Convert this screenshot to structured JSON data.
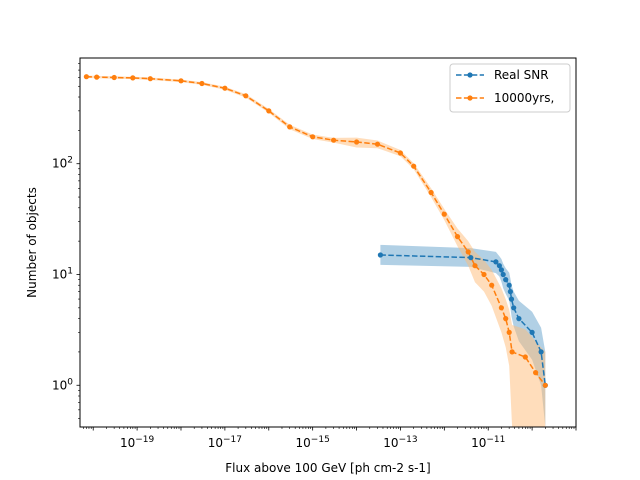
{
  "chart_data": {
    "type": "line",
    "title": "",
    "xlabel": "Flux above 100 GeV [ph cm-2 s-1]",
    "ylabel": "Number of objects",
    "xscale": "log",
    "yscale": "log",
    "xlim": [
      5e-21,
      1e-09
    ],
    "ylim": [
      0.42,
      900
    ],
    "x_ticks": [
      {
        "value": 1e-19,
        "label": "10",
        "exp": "−19"
      },
      {
        "value": 1e-17,
        "label": "10",
        "exp": "−17"
      },
      {
        "value": 1e-15,
        "label": "10",
        "exp": "−15"
      },
      {
        "value": 1e-13,
        "label": "10",
        "exp": "−13"
      },
      {
        "value": 1e-11,
        "label": "10",
        "exp": "−11"
      }
    ],
    "y_ticks": [
      {
        "value": 1,
        "label": "10",
        "exp": "0"
      },
      {
        "value": 10,
        "label": "10",
        "exp": "1"
      },
      {
        "value": 100,
        "label": "10",
        "exp": "2"
      }
    ],
    "grid": false,
    "legend": "top-right",
    "series": [
      {
        "name": "Real SNR",
        "color": "#1f77b4",
        "band_color": "#1f77b4",
        "points": [
          {
            "x": 3.5e-14,
            "y": 15,
            "lo": 12.2,
            "hi": 18.5
          },
          {
            "x": 4e-12,
            "y": 14.2,
            "lo": 11.7,
            "hi": 17.3
          },
          {
            "x": 1.5e-11,
            "y": 13,
            "lo": 10.3,
            "hi": 16
          },
          {
            "x": 1.8e-11,
            "y": 12,
            "lo": 9.6,
            "hi": 14.6
          },
          {
            "x": 2e-11,
            "y": 11,
            "lo": 8.6,
            "hi": 13.8
          },
          {
            "x": 2.2e-11,
            "y": 10,
            "lo": 7.5,
            "hi": 12.5
          },
          {
            "x": 2.5e-11,
            "y": 9,
            "lo": 6.7,
            "hi": 11.4
          },
          {
            "x": 3e-11,
            "y": 8,
            "lo": 5.8,
            "hi": 10.4
          },
          {
            "x": 3.2e-11,
            "y": 7,
            "lo": 5.0,
            "hi": 9.2
          },
          {
            "x": 3.4e-11,
            "y": 6,
            "lo": 4.2,
            "hi": 8.0
          },
          {
            "x": 3.8e-11,
            "y": 5,
            "lo": 3.4,
            "hi": 7.0
          },
          {
            "x": 5e-11,
            "y": 4,
            "lo": 2.5,
            "hi": 5.8
          },
          {
            "x": 1e-10,
            "y": 3,
            "lo": 1.7,
            "hi": 4.6
          },
          {
            "x": 1.6e-10,
            "y": 2,
            "lo": 1.0,
            "hi": 3.3
          },
          {
            "x": 2e-10,
            "y": 1,
            "lo": 0.42,
            "hi": 2.0
          }
        ]
      },
      {
        "name": "10000yrs,",
        "color": "#ff7f0e",
        "band_color": "#ffbb78",
        "points": [
          {
            "x": 7e-21,
            "y": 610,
            "lo": 595,
            "hi": 625
          },
          {
            "x": 1.2e-20,
            "y": 605,
            "lo": 590,
            "hi": 620
          },
          {
            "x": 3e-20,
            "y": 600,
            "lo": 585,
            "hi": 615
          },
          {
            "x": 8e-20,
            "y": 595,
            "lo": 580,
            "hi": 610
          },
          {
            "x": 2e-19,
            "y": 585,
            "lo": 570,
            "hi": 600
          },
          {
            "x": 1e-18,
            "y": 560,
            "lo": 545,
            "hi": 575
          },
          {
            "x": 3e-18,
            "y": 530,
            "lo": 515,
            "hi": 545
          },
          {
            "x": 1e-17,
            "y": 480,
            "lo": 465,
            "hi": 495
          },
          {
            "x": 3e-17,
            "y": 410,
            "lo": 395,
            "hi": 425
          },
          {
            "x": 1e-16,
            "y": 300,
            "lo": 288,
            "hi": 312
          },
          {
            "x": 3e-16,
            "y": 215,
            "lo": 205,
            "hi": 225
          },
          {
            "x": 1e-15,
            "y": 175,
            "lo": 167,
            "hi": 183
          },
          {
            "x": 3e-15,
            "y": 163,
            "lo": 155,
            "hi": 171
          },
          {
            "x": 1e-14,
            "y": 157,
            "lo": 140,
            "hi": 172
          },
          {
            "x": 3e-14,
            "y": 150,
            "lo": 138,
            "hi": 162
          },
          {
            "x": 1e-13,
            "y": 125,
            "lo": 117,
            "hi": 133
          },
          {
            "x": 2e-13,
            "y": 95,
            "lo": 89,
            "hi": 101
          },
          {
            "x": 5e-13,
            "y": 55,
            "lo": 50,
            "hi": 60
          },
          {
            "x": 1e-12,
            "y": 35,
            "lo": 31,
            "hi": 39
          },
          {
            "x": 2e-12,
            "y": 22,
            "lo": 18,
            "hi": 26
          },
          {
            "x": 3.5e-12,
            "y": 16,
            "lo": 12,
            "hi": 20
          },
          {
            "x": 5e-12,
            "y": 12,
            "lo": 8.5,
            "hi": 16
          },
          {
            "x": 8e-12,
            "y": 10,
            "lo": 7,
            "hi": 13.5
          },
          {
            "x": 1.2e-11,
            "y": 8,
            "lo": 5.2,
            "hi": 11
          },
          {
            "x": 2e-11,
            "y": 5,
            "lo": 3,
            "hi": 7.5
          },
          {
            "x": 2.5e-11,
            "y": 4,
            "lo": 2.2,
            "hi": 6
          },
          {
            "x": 3e-11,
            "y": 3,
            "lo": 1.5,
            "hi": 4.8
          },
          {
            "x": 3.5e-11,
            "y": 2,
            "lo": 0.42,
            "hi": 3.5
          },
          {
            "x": 7e-11,
            "y": 1.8,
            "lo": 0.42,
            "hi": 3.2
          },
          {
            "x": 1.2e-10,
            "y": 1.3,
            "lo": 0.42,
            "hi": 2.5
          },
          {
            "x": 2e-10,
            "y": 1,
            "lo": 0.42,
            "hi": 2.0
          }
        ]
      }
    ]
  }
}
